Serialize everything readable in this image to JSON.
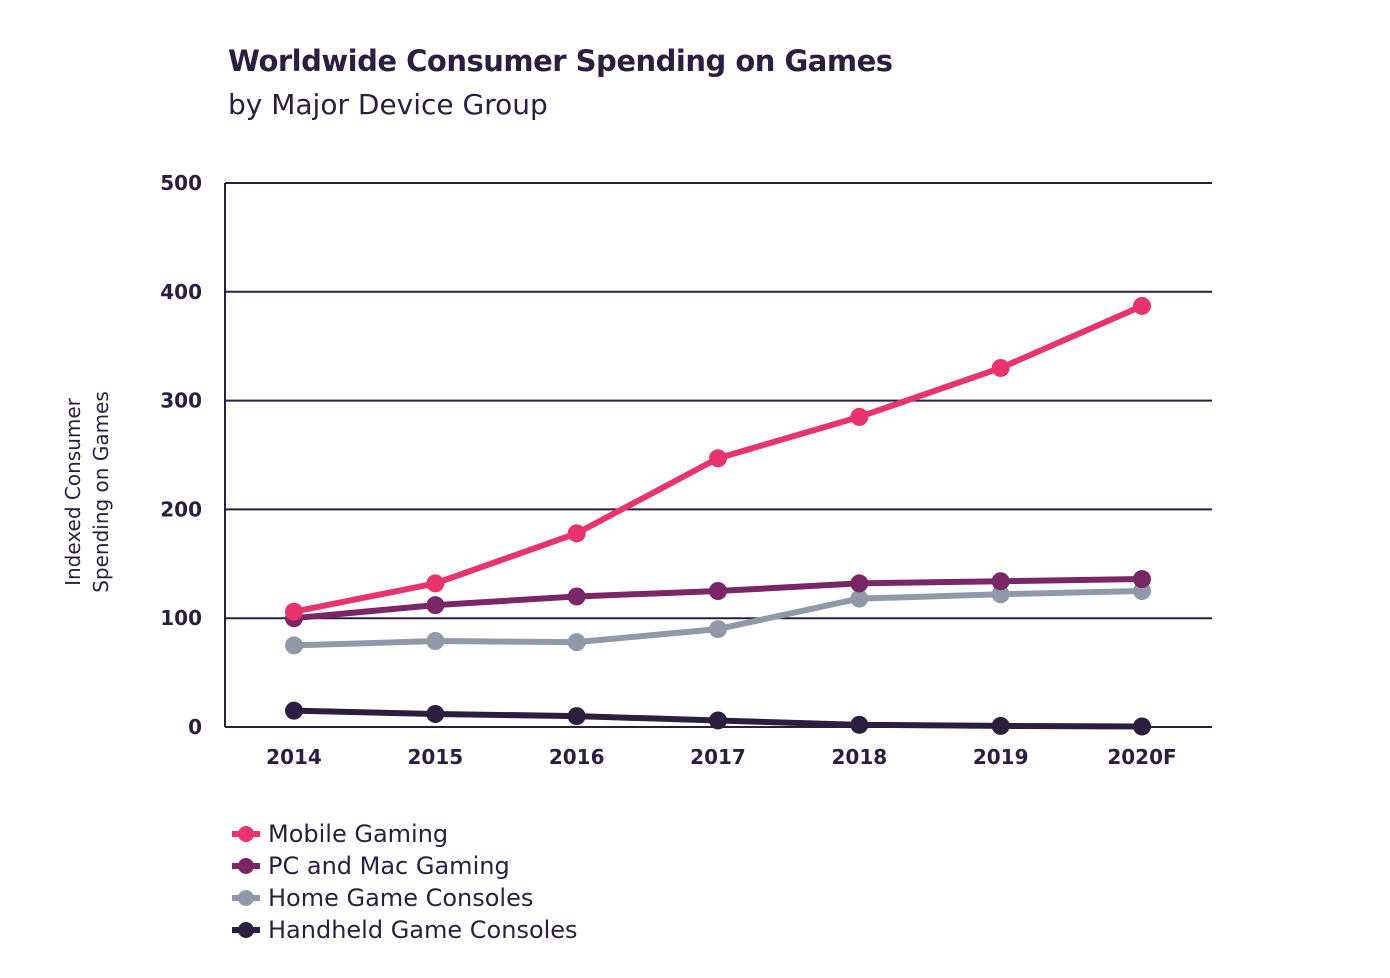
{
  "chart_data": {
    "type": "line",
    "title": "Worldwide Consumer Spending on Games",
    "subtitle": "by Major Device Group",
    "xlabel": "",
    "ylabel": "Indexed Consumer Spending on Games",
    "ylim": [
      0,
      500
    ],
    "yticks": [
      "0",
      "100",
      "200",
      "300",
      "400",
      "500"
    ],
    "ytick_values": [
      0,
      100,
      200,
      300,
      400,
      500
    ],
    "categories": [
      "2014",
      "2015",
      "2016",
      "2017",
      "2018",
      "2019",
      "2020F"
    ],
    "grid": true,
    "legend_position": "bottom-left",
    "series": [
      {
        "name": "Mobile Gaming",
        "color": "#e8336d",
        "values": [
          106,
          132,
          178,
          247,
          285,
          330,
          387
        ]
      },
      {
        "name": "PC and Mac Gaming",
        "color": "#7b2667",
        "values": [
          100,
          112,
          120,
          125,
          132,
          134,
          136
        ]
      },
      {
        "name": "Home Game Consoles",
        "color": "#9199a8",
        "values": [
          75,
          79,
          78,
          90,
          118,
          122,
          125
        ]
      },
      {
        "name": "Handheld Game Consoles",
        "color": "#2b1e3f",
        "values": [
          15,
          12,
          10,
          6,
          2,
          1,
          0.5
        ]
      }
    ]
  }
}
